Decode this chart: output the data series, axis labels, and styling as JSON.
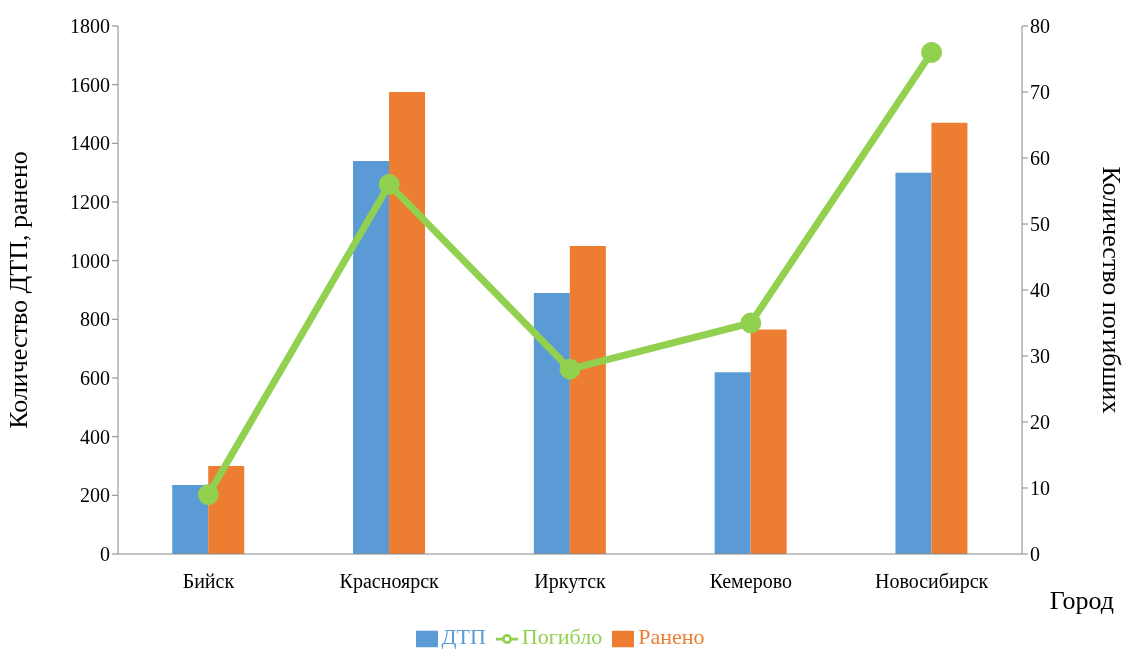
{
  "chart_data": {
    "type": "bar",
    "categories": [
      "Бийск",
      "Красноярск",
      "Иркутск",
      "Кемерово",
      "Новосибирск"
    ],
    "series": [
      {
        "name": "ДТП",
        "color": "#5b9bd5",
        "values": [
          235,
          1340,
          890,
          620,
          1300
        ]
      },
      {
        "name": "Ранено",
        "color": "#ed7d31",
        "values": [
          300,
          1575,
          1050,
          765,
          1470
        ]
      },
      {
        "name": "Погибло",
        "type": "line",
        "axis": "y2",
        "color": "#92d050",
        "values": [
          9,
          56,
          28,
          35,
          76
        ],
        "marker": "circle"
      }
    ],
    "xlabel": "Город",
    "ylabel": "Количество ДТП, ранено",
    "y2label": "Количество погибших",
    "ylim": [
      0,
      1800
    ],
    "yticks": [
      0,
      200,
      400,
      600,
      800,
      1000,
      1200,
      1400,
      1600,
      1800
    ],
    "y2lim": [
      0,
      80
    ],
    "y2ticks": [
      0,
      10,
      20,
      30,
      40,
      50,
      60,
      70,
      80
    ],
    "grid": false,
    "legend": "bottom"
  }
}
